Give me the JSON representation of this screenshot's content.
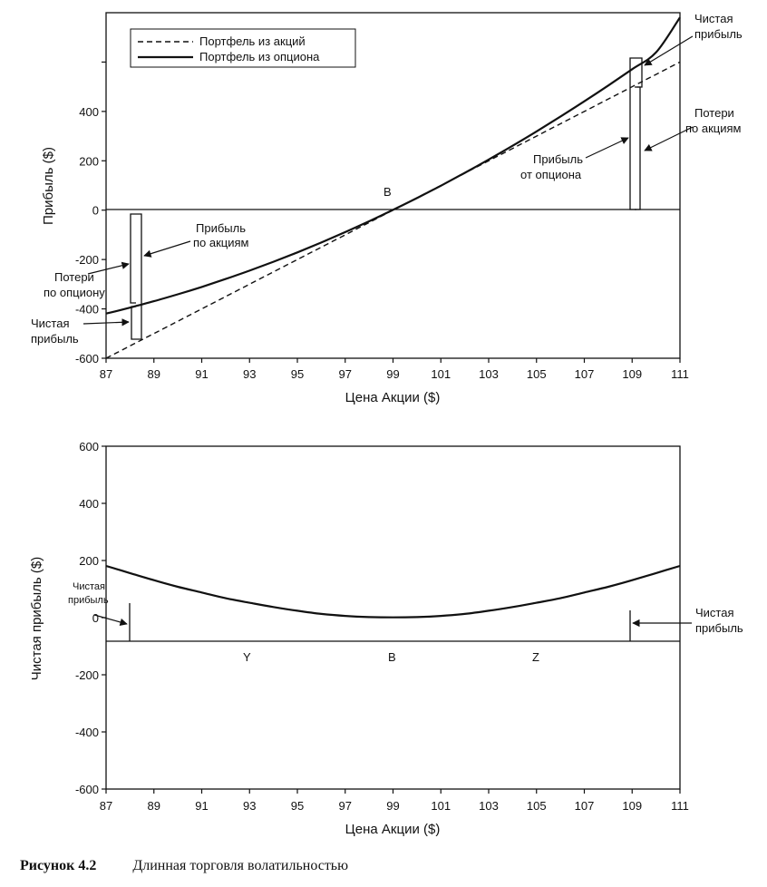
{
  "chart_data": [
    {
      "type": "line",
      "xlabel": "Цена Акции ($)",
      "ylabel": "Прибыль ($)",
      "xlim": [
        87,
        111
      ],
      "ylim": [
        -600,
        800
      ],
      "x_ticks": [
        87,
        89,
        91,
        93,
        95,
        97,
        99,
        101,
        103,
        105,
        107,
        109,
        111
      ],
      "x_tick_labels": [
        "87",
        "89",
        "91",
        "93",
        "95",
        "97",
        "99",
        "101",
        "103",
        "105",
        "107",
        "109",
        "111"
      ],
      "y_ticks": [
        -600,
        -400,
        -200,
        0,
        200,
        400,
        600
      ],
      "y_tick_labels": [
        "-600",
        "-400",
        "-200",
        "0",
        "200",
        "400",
        ""
      ],
      "legend_position": "top-left",
      "series": [
        {
          "name": "Портфель из акций",
          "style": "dashed",
          "x": [
            87,
            111
          ],
          "y": [
            -600,
            600
          ]
        },
        {
          "name": "Портфель из опциона",
          "style": "solid",
          "x": [
            87,
            88,
            89,
            90,
            91,
            92,
            93,
            94,
            95,
            96,
            97,
            98,
            99,
            100,
            101,
            102,
            103,
            104,
            105,
            106,
            107,
            108,
            109,
            110,
            111
          ],
          "y": [
            -419,
            -395,
            -369,
            -341,
            -311,
            -279,
            -245,
            -209,
            -171,
            -131,
            -89,
            -45,
            1,
            49,
            99,
            151,
            205,
            261,
            319,
            379,
            441,
            505,
            571,
            639,
            781
          ]
        }
      ],
      "annotations": {
        "point_b": "B",
        "left_stock_profit": "Прибыль по акциям",
        "left_option_loss": "Потери по опциону",
        "left_net_profit": "Чистая прибыль",
        "right_net_profit": "Чистая прибыль",
        "right_stock_loss": "Потери по акциям",
        "right_option_profit": "Прибыль от опциона"
      }
    },
    {
      "type": "line",
      "xlabel": "Цена Акции ($)",
      "ylabel": "Чистая прибыль ($)",
      "xlim": [
        87,
        111
      ],
      "ylim": [
        -600,
        600
      ],
      "x_ticks": [
        87,
        89,
        91,
        93,
        95,
        97,
        99,
        101,
        103,
        105,
        107,
        109,
        111
      ],
      "x_tick_labels": [
        "87",
        "89",
        "91",
        "93",
        "95",
        "97",
        "99",
        "101",
        "103",
        "105",
        "107",
        "109",
        "111"
      ],
      "y_ticks": [
        -600,
        -400,
        -200,
        0,
        200,
        400,
        600
      ],
      "y_tick_labels": [
        "-600",
        "-400",
        "-200",
        "0",
        "200",
        "400",
        "600"
      ],
      "series": [
        {
          "style": "solid",
          "x": [
            87,
            88,
            89,
            90,
            91,
            92,
            93,
            94,
            95,
            96,
            97,
            98,
            99,
            100,
            101,
            102,
            103,
            104,
            105,
            106,
            107,
            108,
            109,
            110,
            111
          ],
          "y": [
            181,
            156,
            131,
            108,
            88,
            68,
            52,
            37,
            24,
            13,
            6,
            2,
            1,
            2,
            6,
            13,
            24,
            37,
            52,
            68,
            88,
            108,
            131,
            156,
            181
          ]
        }
      ],
      "annotations": {
        "point_y": "Y",
        "point_b": "B",
        "point_z": "Z",
        "left_net_profit": "Чистая прибыль",
        "right_net_profit": "Чистая прибыль"
      }
    }
  ],
  "caption": {
    "number": "Рисунок 4.2",
    "text": "Длинная торговля волатильностью"
  }
}
